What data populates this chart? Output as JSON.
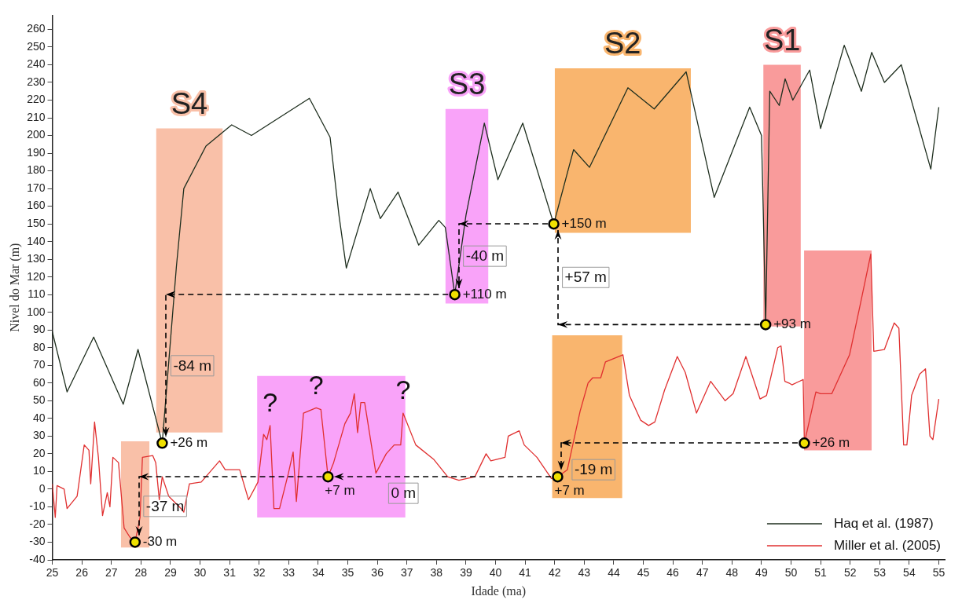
{
  "chart_data": {
    "type": "line",
    "xlabel": "Idade (ma)",
    "ylabel": "Nivel do Mar (m)",
    "xlim": [
      25,
      55.2
    ],
    "ylim": [
      -40,
      268
    ],
    "xticks": [
      25,
      26,
      27,
      28,
      29,
      30,
      31,
      32,
      33,
      34,
      35,
      36,
      37,
      38,
      39,
      40,
      41,
      42,
      43,
      44,
      45,
      46,
      47,
      48,
      49,
      50,
      51,
      52,
      53,
      54,
      55
    ],
    "yticks": [
      -40,
      -30,
      -20,
      -10,
      0,
      10,
      20,
      30,
      40,
      50,
      60,
      70,
      80,
      90,
      100,
      110,
      120,
      130,
      140,
      150,
      160,
      170,
      180,
      190,
      200,
      210,
      220,
      230,
      240,
      250,
      260
    ],
    "grid": false,
    "legend": "bottom right",
    "marker": "none",
    "series": [
      {
        "type": "area",
        "color": "#f9c0a8",
        "x": [
          28.51,
          30.77
        ],
        "values": [
          null,
          null
        ],
        "lower": [
          32,
          32
        ],
        "upper": [
          204,
          204
        ]
      },
      {
        "type": "area",
        "color": "#f9c0a8",
        "x": [
          27.32,
          28.29
        ],
        "values": [
          null,
          null
        ],
        "lower": [
          -33,
          -33
        ],
        "upper": [
          27,
          27
        ]
      },
      {
        "type": "area",
        "color": "#f9a3f9",
        "x": [
          38.3,
          39.76
        ],
        "values": [
          null,
          null
        ],
        "lower": [
          105,
          105
        ],
        "upper": [
          215,
          215
        ]
      },
      {
        "type": "area",
        "color": "#f9a3f9",
        "x": [
          31.93,
          36.95
        ],
        "values": [
          null,
          null
        ],
        "lower": [
          -16,
          -16
        ],
        "upper": [
          64,
          64
        ]
      },
      {
        "type": "area",
        "color": "#f9b56e",
        "x": [
          42.0,
          46.61
        ],
        "values": [
          null,
          null
        ],
        "lower": [
          145,
          145
        ],
        "upper": [
          238,
          238
        ]
      },
      {
        "type": "area",
        "color": "#f9b56e",
        "x": [
          41.91,
          44.29
        ],
        "values": [
          null,
          null
        ],
        "lower": [
          -5,
          -5
        ],
        "upper": [
          87,
          87
        ]
      },
      {
        "type": "area",
        "color": "#f99b9b",
        "x": [
          49.06,
          50.33
        ],
        "values": [
          null,
          null
        ],
        "lower": [
          92,
          92
        ],
        "upper": [
          240,
          240
        ]
      },
      {
        "type": "area",
        "color": "#f99b9b",
        "x": [
          50.44,
          52.73
        ],
        "values": [
          null,
          null
        ],
        "lower": [
          22,
          22
        ],
        "upper": [
          135,
          135
        ]
      },
      {
        "name": "Haq et al. (1987)",
        "type": "line",
        "color": "#1e2e1e",
        "x": [
          25,
          25.5,
          26.4,
          27.4,
          27.9,
          28.72,
          29.2,
          29.45,
          30.2,
          31.07,
          31.74,
          33.7,
          34.4,
          34.7,
          34.95,
          35.76,
          36.1,
          36.7,
          37.4,
          38.08,
          38.3,
          38.62,
          39.0,
          39.62,
          40.08,
          40.92,
          41.97,
          42.64,
          43.18,
          44.48,
          45.37,
          46.45,
          47.4,
          48.6,
          49.0,
          49.06,
          49.14,
          49.28,
          49.6,
          49.8,
          50.06,
          50.63,
          51.0,
          51.8,
          52.38,
          52.73,
          53.16,
          53.73,
          54.73,
          55
        ],
        "values": [
          89,
          55,
          86,
          48,
          79,
          26,
          126,
          170,
          194,
          206,
          200,
          221,
          199,
          155,
          125,
          170,
          153,
          168,
          138,
          152,
          148,
          110,
          155,
          207,
          175,
          207,
          150,
          192,
          182,
          227,
          215,
          236,
          165,
          216,
          200,
          157,
          93,
          225,
          217,
          232,
          220,
          237,
          204,
          251,
          225,
          247,
          230,
          240,
          181,
          216
        ]
      },
      {
        "name": "Miller et al. (2005)",
        "type": "line",
        "color": "#e03030",
        "x": [
          25.0,
          25.1,
          25.16,
          25.4,
          25.5,
          25.84,
          26.08,
          26.24,
          26.3,
          26.43,
          26.56,
          26.7,
          26.86,
          26.95,
          27.05,
          27.24,
          27.43,
          27.62,
          27.8,
          27.97,
          28.05,
          28.4,
          28.5,
          28.62,
          28.72,
          28.94,
          29.3,
          29.45,
          29.64,
          30.04,
          30.66,
          30.85,
          31.34,
          31.64,
          31.96,
          32.15,
          32.26,
          32.37,
          32.5,
          32.69,
          32.99,
          33.15,
          33.26,
          33.5,
          33.93,
          34.09,
          34.33,
          34.52,
          34.9,
          35.09,
          35.22,
          35.33,
          35.44,
          35.57,
          35.95,
          36.3,
          36.57,
          36.79,
          36.87,
          37.3,
          37.9,
          38.38,
          38.76,
          39.3,
          39.68,
          39.84,
          40.32,
          40.43,
          40.8,
          40.97,
          41.4,
          41.89,
          42.1,
          42.43,
          42.86,
          43.13,
          43.29,
          43.56,
          43.72,
          44.31,
          44.53,
          44.91,
          45.18,
          45.39,
          45.72,
          46.15,
          46.42,
          46.8,
          47.28,
          47.77,
          48.04,
          48.47,
          48.95,
          49.17,
          49.55,
          49.66,
          49.79,
          49.93,
          50.03,
          50.41,
          50.45,
          50.84,
          51.0,
          51.38,
          51.98,
          52.35,
          52.7,
          52.8,
          53.16,
          53.49,
          53.65,
          53.81,
          53.92,
          54.08,
          54.35,
          54.55,
          54.7,
          54.8,
          55
        ],
        "values": [
          3,
          -16,
          2,
          0,
          -11,
          -4,
          25,
          22,
          3,
          38,
          18,
          -15,
          -2,
          -10,
          18,
          15,
          -22,
          -27,
          -30,
          -16,
          18,
          19,
          15,
          -6,
          7,
          -4,
          -10,
          -13,
          3,
          4,
          16,
          11,
          11,
          -6,
          4,
          31,
          28,
          36,
          -11,
          -11,
          9,
          21,
          -7,
          43,
          46,
          45,
          7,
          15,
          37,
          43,
          54,
          32,
          49,
          49,
          9,
          20,
          25,
          25,
          43,
          25,
          17,
          7,
          5,
          7,
          20,
          16,
          18,
          30,
          33,
          25,
          18,
          6,
          7,
          11,
          44,
          60,
          63,
          63,
          72,
          76,
          53,
          39,
          36,
          38,
          56,
          75,
          66,
          43,
          61,
          50,
          54,
          75,
          51,
          53,
          80,
          81,
          61,
          60,
          59,
          62,
          26,
          55,
          54,
          54,
          76,
          105,
          133,
          78,
          79,
          94,
          91,
          25,
          25,
          53,
          65,
          68,
          30,
          28,
          51
        ]
      },
      {
        "type": "scatter",
        "color": "#f0e000",
        "marker": "circle",
        "x": [
          28.72,
          38.62,
          41.97,
          49.14,
          27.8,
          34.33,
          42.1,
          50.45
        ],
        "values": [
          26,
          110,
          150,
          93,
          -30,
          7,
          7,
          26
        ]
      }
    ],
    "annotations": [
      {
        "text": "S4",
        "x": 29.64,
        "y": 204
      },
      {
        "text": "S3",
        "x": 39.03,
        "y": 215
      },
      {
        "text": "S2",
        "x": 44.3,
        "y": 238
      },
      {
        "text": "S1",
        "x": 49.7,
        "y": 240
      },
      {
        "text": "+26 m",
        "x": 28.72,
        "y": 26
      },
      {
        "text": "+110 m",
        "x": 38.62,
        "y": 110
      },
      {
        "text": "+150 m",
        "x": 41.97,
        "y": 150
      },
      {
        "text": "+93 m",
        "x": 49.14,
        "y": 93
      },
      {
        "text": "+7 m",
        "x": 42.1,
        "y": 7
      },
      {
        "text": "+26 m",
        "x": 50.45,
        "y": 26
      },
      {
        "text": "+7 m",
        "x": 34.33,
        "y": 7
      },
      {
        "text": "-30 m",
        "x": 27.8,
        "y": -30
      },
      "-84 m",
      "-40 m",
      "+57 m",
      {
        "text": "-19 m",
        "x": 42.43,
        "y": 11
      },
      "0 m",
      "-37 m",
      {
        "text": "?",
        "x": 32.37,
        "y": 36
      },
      {
        "text": "?",
        "x": 33.93,
        "y": 46
      },
      {
        "text": "?",
        "x": 36.87,
        "y": 43
      }
    ]
  }
}
